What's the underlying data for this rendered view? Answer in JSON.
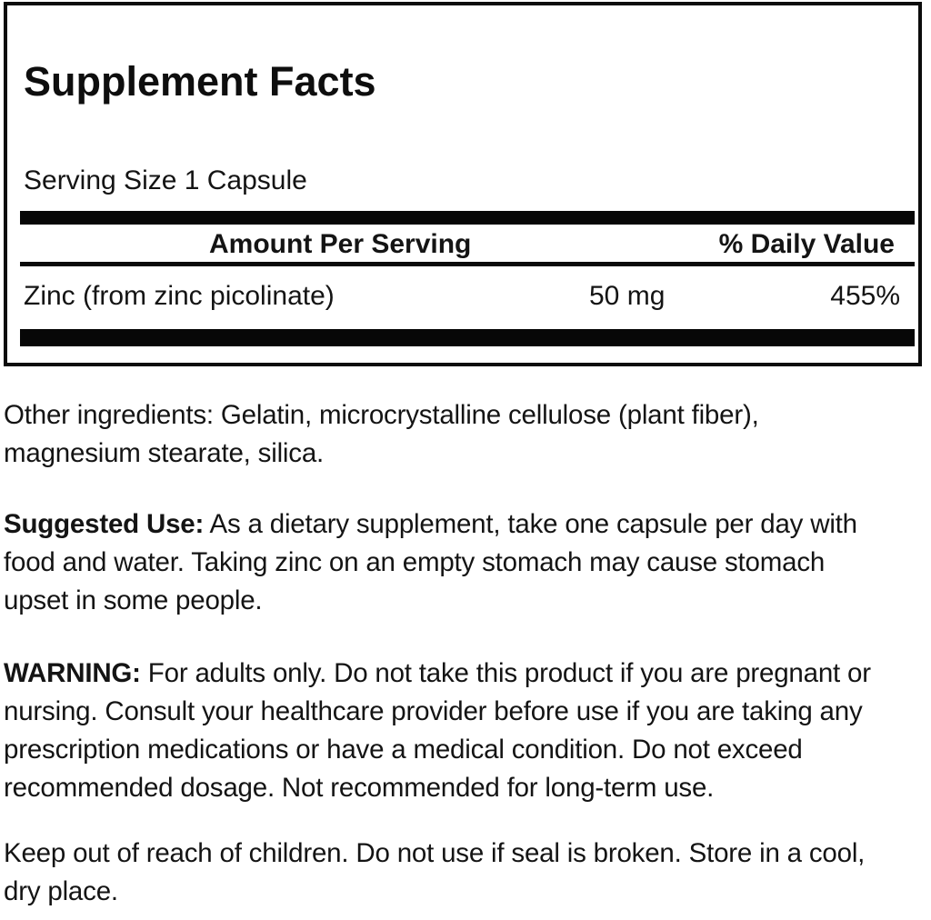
{
  "colors": {
    "background": "#ffffff",
    "ink": "#141414",
    "rule": "#070707"
  },
  "supplement_facts": {
    "title": "Supplement Facts",
    "serving_size": "Serving Size 1 Capsule",
    "header": {
      "amount_col": "Amount Per Serving",
      "dv_col": "% Daily Value"
    },
    "rows": [
      {
        "name": "Zinc (from zinc picolinate)",
        "amount": "50 mg",
        "daily_value": "455%"
      }
    ]
  },
  "paragraphs": {
    "other_ingredients": {
      "text": "Other ingredients: Gelatin, microcrystalline cellulose (plant fiber),\nmagnesium stearate, silica."
    },
    "suggested_use": {
      "lead": "Suggested Use:",
      "text": " As a dietary supplement, take one capsule per day with\nfood and water. Taking zinc on an empty stomach may cause stomach\nupset in some people."
    },
    "warning": {
      "lead": "WARNING:",
      "text": " For adults only. Do not take this product if you are pregnant or\nnursing. Consult your healthcare provider before use if you are taking any\nprescription medications or have a medical condition. Do not exceed\nrecommended dosage. Not recommended for long-term use."
    },
    "storage": {
      "text": "Keep out of reach of children. Do not use if seal is broken. Store in a cool,\ndry place."
    }
  }
}
